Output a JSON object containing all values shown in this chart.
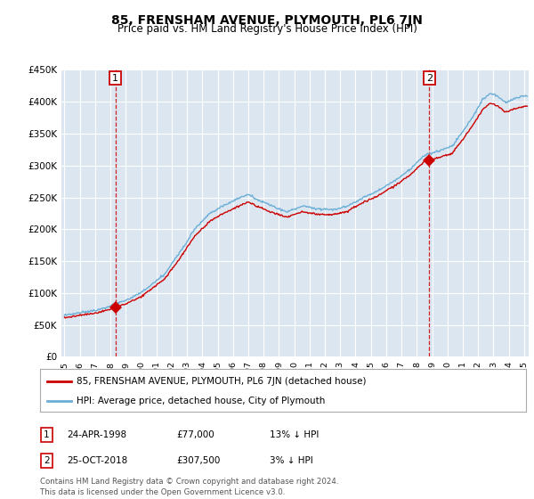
{
  "title": "85, FRENSHAM AVENUE, PLYMOUTH, PL6 7JN",
  "subtitle": "Price paid vs. HM Land Registry's House Price Index (HPI)",
  "ylim": [
    0,
    450000
  ],
  "yticks": [
    0,
    50000,
    100000,
    150000,
    200000,
    250000,
    300000,
    350000,
    400000,
    450000
  ],
  "ytick_labels": [
    "£0",
    "£50K",
    "£100K",
    "£150K",
    "£200K",
    "£250K",
    "£300K",
    "£350K",
    "£400K",
    "£450K"
  ],
  "bg_color": "#dce6f1",
  "grid_color": "#ffffff",
  "sale1_date": 1998.32,
  "sale1_price": 77000,
  "sale2_date": 2018.82,
  "sale2_price": 307500,
  "legend_house": "85, FRENSHAM AVENUE, PLYMOUTH, PL6 7JN (detached house)",
  "legend_hpi": "HPI: Average price, detached house, City of Plymouth",
  "footer": "Contains HM Land Registry data © Crown copyright and database right 2024.\nThis data is licensed under the Open Government Licence v3.0.",
  "hpi_color": "#6baed6",
  "sale_color": "#cc0000",
  "title_fontsize": 10,
  "subtitle_fontsize": 8.5,
  "tick_fontsize": 7.5
}
